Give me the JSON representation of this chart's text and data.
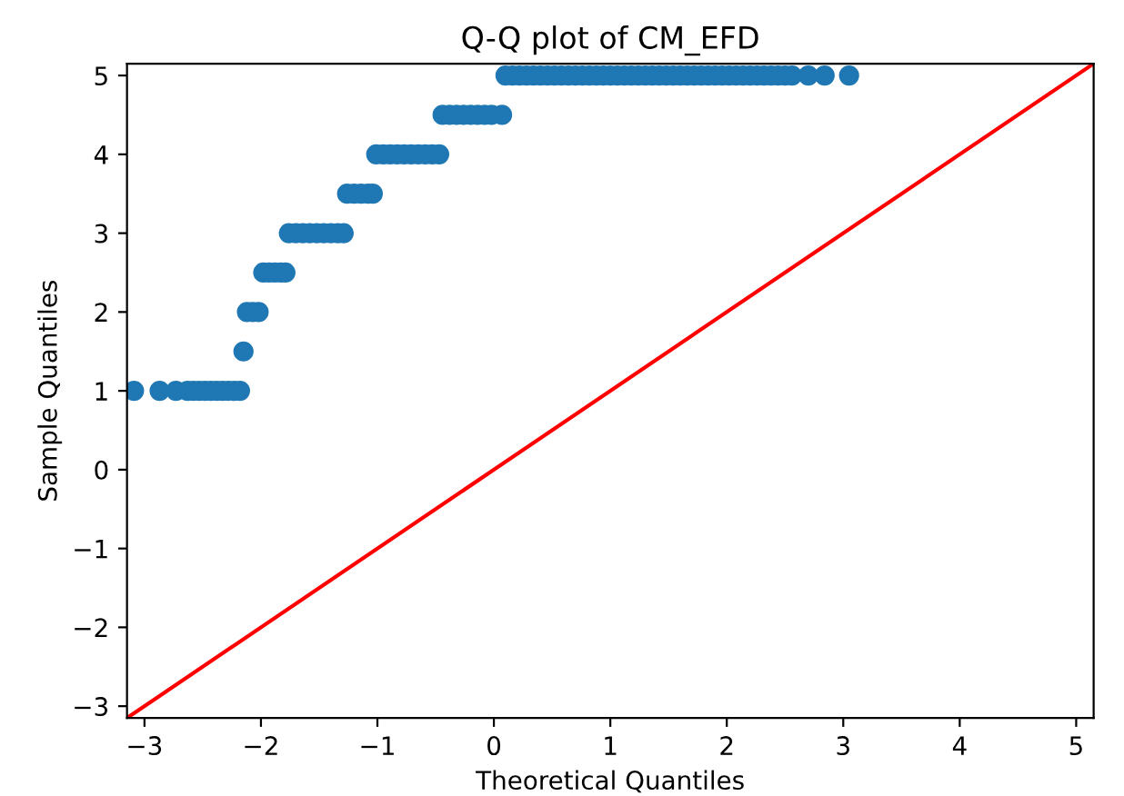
{
  "chart_data": {
    "type": "scatter",
    "title": "Q-Q plot of CM_EFD",
    "xlabel": "Theoretical Quantiles",
    "ylabel": "Sample Quantiles",
    "series": [
      {
        "color": "#1f77b4",
        "marker": "circle",
        "x": [
          -3.09,
          -2.87,
          -2.73,
          -2.63,
          -2.58,
          -2.53,
          -2.48,
          -2.43,
          -2.38,
          -2.33,
          -2.28,
          -2.23,
          -2.18,
          -2.15,
          -2.12,
          -2.07,
          -2.02,
          -1.98,
          -1.93,
          -1.88,
          -1.83,
          -1.79,
          -1.76,
          -1.7,
          -1.64,
          -1.58,
          -1.52,
          -1.46,
          -1.4,
          -1.34,
          -1.29,
          -1.26,
          -1.2,
          -1.14,
          -1.08,
          -1.04,
          -1.01,
          -0.95,
          -0.89,
          -0.83,
          -0.77,
          -0.71,
          -0.65,
          -0.59,
          -0.53,
          -0.47,
          -0.44,
          -0.38,
          -0.32,
          -0.26,
          -0.2,
          -0.14,
          -0.08,
          -0.02,
          0.07,
          0.1,
          0.16,
          0.22,
          0.28,
          0.34,
          0.4,
          0.46,
          0.52,
          0.58,
          0.64,
          0.7,
          0.76,
          0.82,
          0.88,
          0.94,
          1.0,
          1.06,
          1.12,
          1.18,
          1.24,
          1.3,
          1.36,
          1.42,
          1.48,
          1.54,
          1.6,
          1.66,
          1.72,
          1.78,
          1.84,
          1.9,
          1.96,
          2.02,
          2.08,
          2.14,
          2.2,
          2.26,
          2.32,
          2.38,
          2.44,
          2.5,
          2.56,
          2.7,
          2.84,
          3.05
        ],
        "values": [
          1,
          1,
          1,
          1,
          1,
          1,
          1,
          1,
          1,
          1,
          1,
          1,
          1,
          1.5,
          2,
          2,
          2,
          2.5,
          2.5,
          2.5,
          2.5,
          2.5,
          3,
          3,
          3,
          3,
          3,
          3,
          3,
          3,
          3,
          3.5,
          3.5,
          3.5,
          3.5,
          3.5,
          4,
          4,
          4,
          4,
          4,
          4,
          4,
          4,
          4,
          4,
          4.5,
          4.5,
          4.5,
          4.5,
          4.5,
          4.5,
          4.5,
          4.5,
          4.5,
          5,
          5,
          5,
          5,
          5,
          5,
          5,
          5,
          5,
          5,
          5,
          5,
          5,
          5,
          5,
          5,
          5,
          5,
          5,
          5,
          5,
          5,
          5,
          5,
          5,
          5,
          5,
          5,
          5,
          5,
          5,
          5,
          5,
          5,
          5,
          5,
          5,
          5,
          5,
          5,
          5,
          5,
          5,
          5,
          5
        ]
      },
      {
        "type": "line",
        "color": "#ff0000",
        "marker": "none",
        "x": [
          -3.15,
          5.15
        ],
        "values": [
          -3.15,
          5.15
        ]
      }
    ],
    "xlim": [
      -3.15,
      5.15
    ],
    "ylim": [
      -3.15,
      5.15
    ],
    "xticks": [
      -3,
      -2,
      -1,
      0,
      1,
      2,
      3,
      4,
      5
    ],
    "yticks": [
      -3,
      -2,
      -1,
      0,
      1,
      2,
      3,
      4,
      5
    ],
    "grid": false,
    "legend": false
  }
}
